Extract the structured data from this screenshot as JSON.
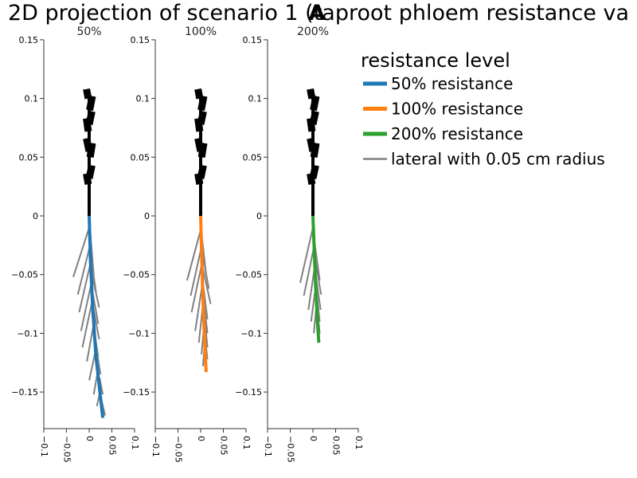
{
  "chart_data": {
    "type": "line",
    "title_text": "2D projection of scenario 1 (taproot phloem resistance va",
    "title_mark": "A",
    "x_ticks": [
      -0.1,
      -0.05,
      0,
      0.05,
      0.1
    ],
    "x_tick_labels": [
      "−0.1",
      "−0.05",
      "0",
      "0.05",
      "0.1"
    ],
    "y_ticks": [
      0.15,
      0.1,
      0.05,
      0,
      -0.05,
      -0.1,
      -0.15
    ],
    "y_tick_labels": [
      "0.15",
      "0.1",
      "0.05",
      "0",
      "−0.05",
      "−0.1",
      "−0.15"
    ],
    "xlim": [
      -0.1,
      0.1
    ],
    "ylim": [
      -0.18,
      0.15
    ],
    "shoot_color": "#000000",
    "lateral_color": "#808080",
    "panels": [
      {
        "name": "50%",
        "color": "#1f77b4",
        "taproot": [
          [
            0.0,
            0.0
          ],
          [
            0.003,
            -0.04
          ],
          [
            0.008,
            -0.08
          ],
          [
            0.015,
            -0.12
          ],
          [
            0.03,
            -0.172
          ]
        ],
        "laterals": [
          {
            "start": [
              0.0,
              -0.01
            ],
            "end": [
              -0.035,
              -0.052
            ]
          },
          {
            "start": [
              0.002,
              -0.025
            ],
            "end": [
              -0.025,
              -0.067
            ]
          },
          {
            "start": [
              0.003,
              -0.04
            ],
            "end": [
              -0.022,
              -0.082
            ]
          },
          {
            "start": [
              0.005,
              -0.057
            ],
            "end": [
              -0.018,
              -0.098
            ]
          },
          {
            "start": [
              0.007,
              -0.072
            ],
            "end": [
              -0.015,
              -0.112
            ]
          },
          {
            "start": [
              0.01,
              -0.092
            ],
            "end": [
              -0.005,
              -0.124
            ]
          },
          {
            "start": [
              0.015,
              -0.113
            ],
            "end": [
              0.0,
              -0.14
            ]
          },
          {
            "start": [
              0.02,
              -0.13
            ],
            "end": [
              0.01,
              -0.152
            ]
          },
          {
            "start": [
              0.025,
              -0.148
            ],
            "end": [
              0.017,
              -0.162
            ]
          },
          {
            "start": [
              0.002,
              -0.012
            ],
            "end": [
              0.01,
              -0.05
            ]
          },
          {
            "start": [
              0.003,
              -0.032
            ],
            "end": [
              0.015,
              -0.065
            ]
          },
          {
            "start": [
              0.005,
              -0.048
            ],
            "end": [
              0.022,
              -0.078
            ]
          },
          {
            "start": [
              0.007,
              -0.064
            ],
            "end": [
              0.02,
              -0.092
            ]
          },
          {
            "start": [
              0.01,
              -0.08
            ],
            "end": [
              0.022,
              -0.105
            ]
          },
          {
            "start": [
              0.012,
              -0.1
            ],
            "end": [
              0.02,
              -0.12
            ]
          },
          {
            "start": [
              0.018,
              -0.118
            ],
            "end": [
              0.025,
              -0.135
            ]
          },
          {
            "start": [
              0.023,
              -0.138
            ],
            "end": [
              0.03,
              -0.152
            ]
          },
          {
            "start": [
              0.028,
              -0.158
            ],
            "end": [
              0.035,
              -0.17
            ]
          }
        ]
      },
      {
        "name": "100%",
        "color": "#ff7f0e",
        "taproot": [
          [
            0.0,
            0.0
          ],
          [
            0.002,
            -0.03
          ],
          [
            0.005,
            -0.07
          ],
          [
            0.008,
            -0.1
          ],
          [
            0.012,
            -0.133
          ]
        ],
        "laterals": [
          {
            "start": [
              0.0,
              -0.012
            ],
            "end": [
              -0.03,
              -0.055
            ]
          },
          {
            "start": [
              0.002,
              -0.026
            ],
            "end": [
              -0.022,
              -0.068
            ]
          },
          {
            "start": [
              0.003,
              -0.04
            ],
            "end": [
              -0.02,
              -0.082
            ]
          },
          {
            "start": [
              0.005,
              -0.055
            ],
            "end": [
              -0.012,
              -0.098
            ]
          },
          {
            "start": [
              0.006,
              -0.072
            ],
            "end": [
              -0.004,
              -0.108
            ]
          },
          {
            "start": [
              0.008,
              -0.09
            ],
            "end": [
              0.002,
              -0.118
            ]
          },
          {
            "start": [
              0.01,
              -0.106
            ],
            "end": [
              0.005,
              -0.128
            ]
          },
          {
            "start": [
              0.002,
              -0.015
            ],
            "end": [
              0.012,
              -0.05
            ]
          },
          {
            "start": [
              0.003,
              -0.03
            ],
            "end": [
              0.018,
              -0.062
            ]
          },
          {
            "start": [
              0.005,
              -0.045
            ],
            "end": [
              0.022,
              -0.075
            ]
          },
          {
            "start": [
              0.006,
              -0.06
            ],
            "end": [
              0.015,
              -0.088
            ]
          },
          {
            "start": [
              0.008,
              -0.077
            ],
            "end": [
              0.015,
              -0.1
            ]
          },
          {
            "start": [
              0.01,
              -0.092
            ],
            "end": [
              0.015,
              -0.112
            ]
          },
          {
            "start": [
              0.011,
              -0.108
            ],
            "end": [
              0.015,
              -0.122
            ]
          }
        ]
      },
      {
        "name": "200%",
        "color": "#2ca02c",
        "taproot": [
          [
            0.0,
            0.0
          ],
          [
            0.003,
            -0.03
          ],
          [
            0.006,
            -0.06
          ],
          [
            0.01,
            -0.09
          ],
          [
            0.013,
            -0.108
          ]
        ],
        "laterals": [
          {
            "start": [
              0.0,
              -0.01
            ],
            "end": [
              -0.028,
              -0.057
            ]
          },
          {
            "start": [
              0.002,
              -0.027
            ],
            "end": [
              -0.02,
              -0.068
            ]
          },
          {
            "start": [
              0.004,
              -0.043
            ],
            "end": [
              -0.01,
              -0.08
            ]
          },
          {
            "start": [
              0.006,
              -0.06
            ],
            "end": [
              -0.004,
              -0.09
            ]
          },
          {
            "start": [
              0.008,
              -0.075
            ],
            "end": [
              0.002,
              -0.1
            ]
          },
          {
            "start": [
              0.002,
              -0.018
            ],
            "end": [
              0.015,
              -0.055
            ]
          },
          {
            "start": [
              0.004,
              -0.035
            ],
            "end": [
              0.018,
              -0.067
            ]
          },
          {
            "start": [
              0.006,
              -0.05
            ],
            "end": [
              0.017,
              -0.08
            ]
          },
          {
            "start": [
              0.008,
              -0.065
            ],
            "end": [
              0.015,
              -0.09
            ]
          },
          {
            "start": [
              0.01,
              -0.08
            ],
            "end": [
              0.015,
              -0.1
            ]
          }
        ]
      }
    ],
    "shoot_stem": [
      [
        0.0,
        0.0
      ],
      [
        0.0,
        0.105
      ]
    ],
    "shoot_leaves": [
      {
        "start": [
          -0.002,
          0.1
        ],
        "end": [
          -0.006,
          0.108
        ]
      },
      {
        "start": [
          0.001,
          0.09
        ],
        "end": [
          0.007,
          0.102
        ]
      },
      {
        "start": [
          0.0,
          0.078
        ],
        "end": [
          0.006,
          0.089
        ]
      },
      {
        "start": [
          -0.002,
          0.072
        ],
        "end": [
          -0.006,
          0.083
        ]
      },
      {
        "start": [
          0.0,
          0.055
        ],
        "end": [
          -0.006,
          0.066
        ]
      },
      {
        "start": [
          0.002,
          0.05
        ],
        "end": [
          0.007,
          0.062
        ]
      },
      {
        "start": [
          0.0,
          0.032
        ],
        "end": [
          0.006,
          0.043
        ]
      },
      {
        "start": [
          -0.002,
          0.027
        ],
        "end": [
          -0.006,
          0.036
        ]
      }
    ],
    "legend": {
      "title": "resistance level",
      "position": "top-right",
      "entries": [
        {
          "label": "50% resistance",
          "color": "#1f77b4",
          "kind": "taproot"
        },
        {
          "label": "100% resistance",
          "color": "#ff7f0e",
          "kind": "taproot"
        },
        {
          "label": "200% resistance",
          "color": "#2ca02c",
          "kind": "taproot"
        },
        {
          "label": "lateral with 0.05 cm radius",
          "color": "#808080",
          "kind": "lateral"
        }
      ]
    }
  }
}
